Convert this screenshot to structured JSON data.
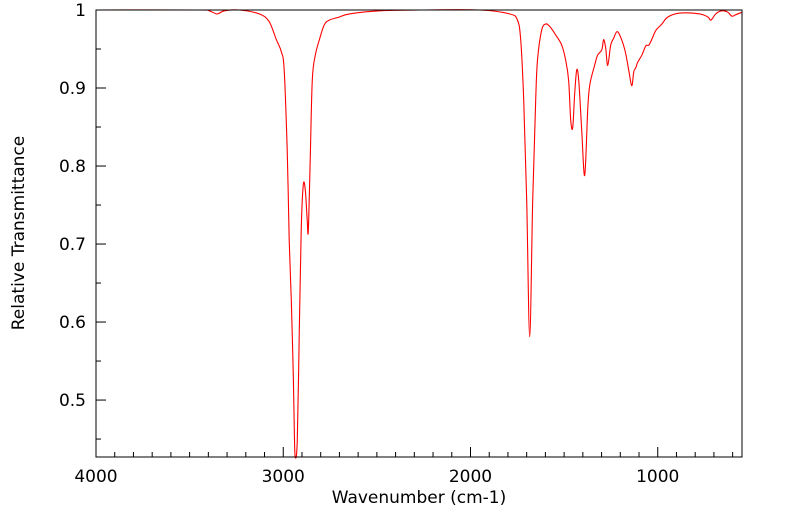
{
  "chart_data": {
    "type": "line",
    "title": "",
    "xlabel": "Wavenumber (cm-1)",
    "ylabel": "Relative Transmittance",
    "xlim": [
      4000,
      550
    ],
    "ylim": [
      0.427,
      1.0
    ],
    "x_reversed": true,
    "grid": false,
    "xticks": [
      4000,
      3000,
      2000,
      1000
    ],
    "xtick_labels": [
      "4000",
      "3000",
      "2000",
      "1000"
    ],
    "yticks": [
      0.5,
      0.6,
      0.7,
      0.8,
      0.9,
      1.0
    ],
    "ytick_labels": [
      "0.5",
      "0.6",
      "0.7",
      "0.8",
      "0.9",
      "1"
    ],
    "series": [
      {
        "name": "spectrum",
        "color": "#ff0000",
        "x": [
          4000,
          3449,
          3396,
          3353,
          3315,
          3235,
          3128,
          3075,
          3037,
          3011,
          2995,
          2979,
          2968,
          2957,
          2946,
          2941,
          2936,
          2925,
          2914,
          2904,
          2893,
          2882,
          2872,
          2866,
          2856,
          2845,
          2829,
          2807,
          2781,
          2754,
          2700,
          2647,
          2487,
          2273,
          1952,
          1791,
          1749,
          1732,
          1716,
          1700,
          1684,
          1668,
          1652,
          1642,
          1620,
          1599,
          1577,
          1545,
          1513,
          1492,
          1476,
          1465,
          1454,
          1444,
          1433,
          1422,
          1406,
          1390,
          1374,
          1363,
          1337,
          1321,
          1299,
          1289,
          1278,
          1267,
          1251,
          1235,
          1219,
          1203,
          1176,
          1155,
          1139,
          1128,
          1117,
          1107,
          1085,
          1064,
          1048,
          1032,
          1010,
          978,
          946,
          882,
          775,
          732,
          716,
          690,
          658,
          625,
          604,
          583,
          550
        ],
        "y": [
          1.0,
          1.0,
          0.999,
          0.995,
          0.999,
          1.0,
          0.995,
          0.985,
          0.962,
          0.947,
          0.923,
          0.821,
          0.705,
          0.628,
          0.526,
          0.462,
          0.427,
          0.449,
          0.59,
          0.718,
          0.776,
          0.769,
          0.731,
          0.717,
          0.808,
          0.91,
          0.942,
          0.962,
          0.981,
          0.987,
          0.991,
          0.995,
          0.999,
          1.0,
          1.0,
          0.995,
          0.987,
          0.962,
          0.885,
          0.756,
          0.581,
          0.756,
          0.885,
          0.936,
          0.974,
          0.982,
          0.979,
          0.968,
          0.955,
          0.936,
          0.91,
          0.859,
          0.849,
          0.891,
          0.923,
          0.91,
          0.846,
          0.788,
          0.872,
          0.904,
          0.929,
          0.942,
          0.949,
          0.962,
          0.951,
          0.929,
          0.955,
          0.964,
          0.972,
          0.968,
          0.949,
          0.923,
          0.903,
          0.921,
          0.926,
          0.933,
          0.942,
          0.954,
          0.955,
          0.962,
          0.974,
          0.982,
          0.991,
          0.996,
          0.995,
          0.991,
          0.987,
          0.995,
          0.999,
          0.997,
          0.992,
          0.994,
          0.997
        ]
      }
    ]
  }
}
